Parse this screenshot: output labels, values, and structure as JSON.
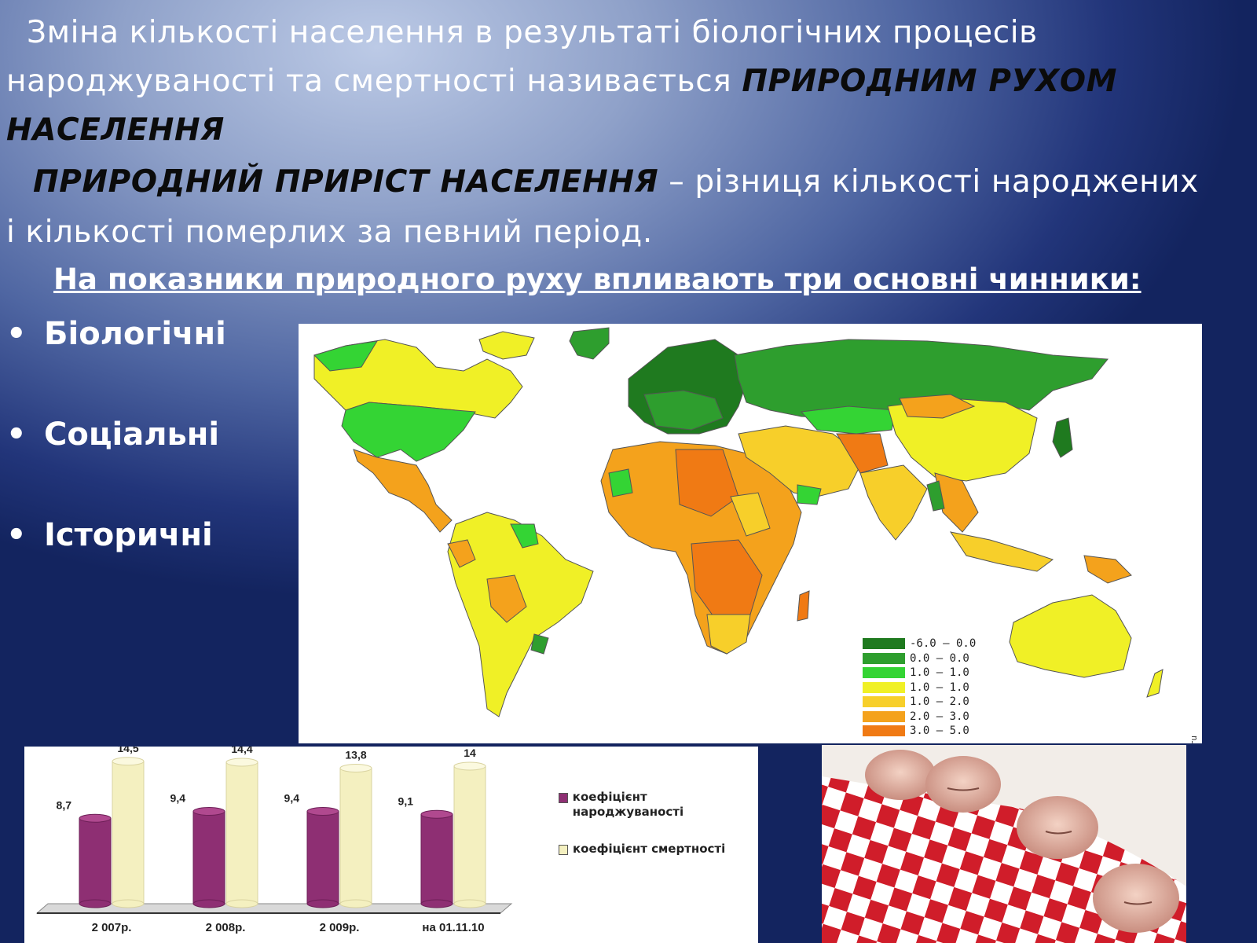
{
  "text": {
    "line1": "Зміна кількості населення в результаті біологічних процесів",
    "line2_plain": "народжуваності та смертності називається ",
    "line2_em": "ПРИРОДНИМ РУХОМ",
    "line3_em": "НАСЕЛЕННЯ",
    "line4_em": "ПРИРОДНИЙ ПРИРІСТ НАСЕЛЕННЯ",
    "line4_plain": " – різниця кількості народжених",
    "line5": "і кількості померлих за певний період.",
    "factors_heading": "На показники природного руху впливають три основні чинники:"
  },
  "bullets": [
    "Біологічні",
    "Соціальні",
    "Історичні"
  ],
  "map": {
    "legend": [
      {
        "label": "-6.0 – 0.0",
        "color": "#1f7a1f"
      },
      {
        "label": "0.0 – 0.0",
        "color": "#2e9e2e"
      },
      {
        "label": "1.0 – 1.0",
        "color": "#34d434"
      },
      {
        "label": "1.0 – 1.0",
        "color": "#f0f026"
      },
      {
        "label": "1.0 – 2.0",
        "color": "#f7cf2a"
      },
      {
        "label": "2.0 – 3.0",
        "color": "#f4a21c"
      },
      {
        "label": "3.0 – 5.0",
        "color": "#f07a14"
      }
    ],
    "watermark": "http://www.sinha.ru"
  },
  "chart_data": {
    "type": "bar",
    "categories": [
      "2 007р.",
      "2 008р.",
      "2 009р.",
      "на 01.11.10"
    ],
    "series": [
      {
        "name": "коефіцієнт народжуваності",
        "values": [
          8.7,
          9.4,
          9.4,
          9.1
        ],
        "labels": [
          "8,7",
          "9,4",
          "9,4",
          "9,1"
        ],
        "color": "#8e2f73"
      },
      {
        "name": "коефіцієнт смертності",
        "values": [
          14.5,
          14.4,
          13.8,
          14
        ],
        "labels": [
          "14,5",
          "14,4",
          "13,8",
          "14"
        ],
        "color": "#f4f0c0"
      }
    ],
    "ylim": [
      0,
      16
    ],
    "grid": false,
    "legend_position": "right"
  },
  "photo": {
    "subject": "newborn-babies-photo"
  }
}
